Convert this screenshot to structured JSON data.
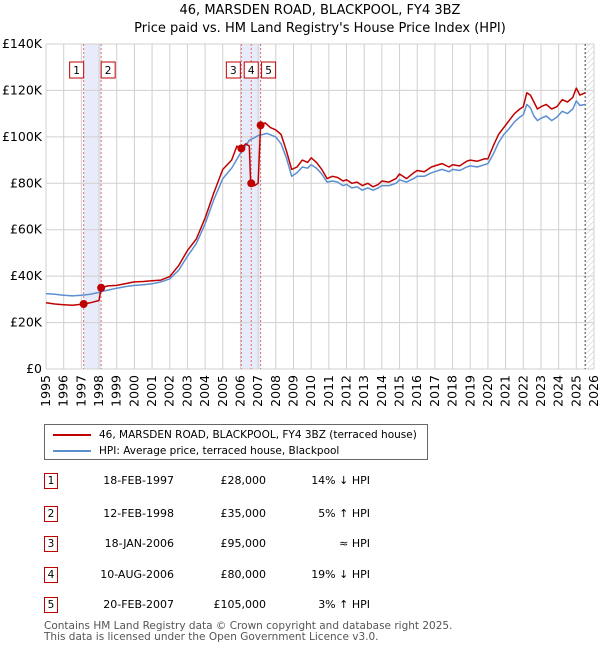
{
  "chart_data": {
    "type": "line",
    "title": "46, MARSDEN ROAD, BLACKPOOL, FY4 3BZ",
    "subtitle": "Price paid vs. HM Land Registry's House Price Index (HPI)",
    "xlim": [
      1995,
      2026
    ],
    "ylim": [
      0,
      140000
    ],
    "x_ticks": [
      "1995",
      "1996",
      "1997",
      "1998",
      "1999",
      "2000",
      "2001",
      "2002",
      "2003",
      "2004",
      "2005",
      "2006",
      "2007",
      "2008",
      "2009",
      "2010",
      "2011",
      "2012",
      "2013",
      "2014",
      "2015",
      "2016",
      "2017",
      "2018",
      "2019",
      "2020",
      "2021",
      "2022",
      "2023",
      "2024",
      "2025",
      "2026"
    ],
    "y_ticks": [
      {
        "value": 0,
        "label": "£0"
      },
      {
        "value": 20000,
        "label": "£20K"
      },
      {
        "value": 40000,
        "label": "£40K"
      },
      {
        "value": 60000,
        "label": "£60K"
      },
      {
        "value": 80000,
        "label": "£80K"
      },
      {
        "value": 100000,
        "label": "£100K"
      },
      {
        "value": 120000,
        "label": "£120K"
      },
      {
        "value": 140000,
        "label": "£140K"
      }
    ],
    "grid": true,
    "shaded_spans": [
      [
        1997.13,
        1998.12
      ],
      [
        2006.05,
        2007.14
      ]
    ],
    "forecast_start": 2025.5,
    "series": [
      {
        "name": "46, MARSDEN ROAD, BLACKPOOL, FY4 3BZ (terraced house)",
        "color": "#c00000",
        "points": [
          [
            1995.0,
            28500
          ],
          [
            1995.5,
            28000
          ],
          [
            1996.0,
            27700
          ],
          [
            1996.5,
            27500
          ],
          [
            1997.13,
            28000
          ],
          [
            1997.5,
            28500
          ],
          [
            1998.0,
            29500
          ],
          [
            1998.12,
            35000
          ],
          [
            1998.5,
            35800
          ],
          [
            1999.0,
            36000
          ],
          [
            1999.5,
            36800
          ],
          [
            2000.0,
            37500
          ],
          [
            2000.5,
            37700
          ],
          [
            2001.0,
            38000
          ],
          [
            2001.5,
            38300
          ],
          [
            2002.0,
            39800
          ],
          [
            2002.5,
            44500
          ],
          [
            2003.0,
            51000
          ],
          [
            2003.5,
            56000
          ],
          [
            2004.0,
            65000
          ],
          [
            2004.5,
            76000
          ],
          [
            2005.0,
            86000
          ],
          [
            2005.5,
            90000
          ],
          [
            2005.8,
            96000
          ],
          [
            2006.05,
            95000
          ],
          [
            2006.3,
            97000
          ],
          [
            2006.5,
            96000
          ],
          [
            2006.58,
            80000
          ],
          [
            2006.8,
            79000
          ],
          [
            2007.0,
            80000
          ],
          [
            2007.14,
            105000
          ],
          [
            2007.4,
            106000
          ],
          [
            2007.7,
            104000
          ],
          [
            2008.0,
            103000
          ],
          [
            2008.3,
            101000
          ],
          [
            2008.6,
            94000
          ],
          [
            2008.9,
            86000
          ],
          [
            2009.2,
            87000
          ],
          [
            2009.5,
            90000
          ],
          [
            2009.8,
            89000
          ],
          [
            2010.0,
            91000
          ],
          [
            2010.3,
            89000
          ],
          [
            2010.6,
            86000
          ],
          [
            2010.9,
            82000
          ],
          [
            2011.2,
            83000
          ],
          [
            2011.5,
            82500
          ],
          [
            2011.8,
            81000
          ],
          [
            2012.0,
            81500
          ],
          [
            2012.3,
            80000
          ],
          [
            2012.6,
            80500
          ],
          [
            2012.9,
            79000
          ],
          [
            2013.2,
            80000
          ],
          [
            2013.5,
            78500
          ],
          [
            2013.8,
            79500
          ],
          [
            2014.0,
            81000
          ],
          [
            2014.4,
            80500
          ],
          [
            2014.8,
            82000
          ],
          [
            2015.0,
            84000
          ],
          [
            2015.4,
            82000
          ],
          [
            2015.8,
            84500
          ],
          [
            2016.0,
            85500
          ],
          [
            2016.4,
            85000
          ],
          [
            2016.8,
            87000
          ],
          [
            2017.0,
            87500
          ],
          [
            2017.4,
            88500
          ],
          [
            2017.8,
            87000
          ],
          [
            2018.0,
            88000
          ],
          [
            2018.4,
            87500
          ],
          [
            2018.8,
            89500
          ],
          [
            2019.0,
            90000
          ],
          [
            2019.4,
            89500
          ],
          [
            2019.8,
            90500
          ],
          [
            2020.0,
            90500
          ],
          [
            2020.3,
            96000
          ],
          [
            2020.6,
            101000
          ],
          [
            2020.9,
            104000
          ],
          [
            2021.2,
            107000
          ],
          [
            2021.5,
            110000
          ],
          [
            2021.8,
            112000
          ],
          [
            2022.0,
            113000
          ],
          [
            2022.2,
            119000
          ],
          [
            2022.4,
            118000
          ],
          [
            2022.6,
            115000
          ],
          [
            2022.8,
            112000
          ],
          [
            2023.0,
            113000
          ],
          [
            2023.3,
            114000
          ],
          [
            2023.6,
            112000
          ],
          [
            2023.9,
            113000
          ],
          [
            2024.2,
            116000
          ],
          [
            2024.5,
            115000
          ],
          [
            2024.8,
            117000
          ],
          [
            2025.0,
            121000
          ],
          [
            2025.2,
            118000
          ],
          [
            2025.5,
            119000
          ]
        ]
      },
      {
        "name": "HPI: Average price, terraced house, Blackpool",
        "color": "#5b8fd0",
        "points": [
          [
            1995.0,
            32500
          ],
          [
            1995.5,
            32200
          ],
          [
            1996.0,
            31800
          ],
          [
            1996.5,
            31500
          ],
          [
            1997.0,
            31800
          ],
          [
            1997.5,
            32200
          ],
          [
            1998.0,
            33000
          ],
          [
            1998.12,
            33300
          ],
          [
            1998.5,
            34000
          ],
          [
            1999.0,
            34800
          ],
          [
            1999.5,
            35500
          ],
          [
            2000.0,
            36000
          ],
          [
            2000.5,
            36300
          ],
          [
            2001.0,
            36700
          ],
          [
            2001.5,
            37500
          ],
          [
            2002.0,
            38800
          ],
          [
            2002.5,
            42500
          ],
          [
            2003.0,
            48500
          ],
          [
            2003.5,
            54000
          ],
          [
            2004.0,
            62500
          ],
          [
            2004.5,
            73000
          ],
          [
            2005.0,
            82000
          ],
          [
            2005.5,
            86500
          ],
          [
            2006.0,
            93000
          ],
          [
            2006.5,
            98500
          ],
          [
            2007.0,
            100500
          ],
          [
            2007.5,
            101500
          ],
          [
            2008.0,
            100000
          ],
          [
            2008.3,
            97000
          ],
          [
            2008.6,
            91000
          ],
          [
            2008.9,
            83000
          ],
          [
            2009.2,
            84500
          ],
          [
            2009.5,
            87000
          ],
          [
            2009.8,
            86500
          ],
          [
            2010.0,
            88000
          ],
          [
            2010.3,
            86500
          ],
          [
            2010.6,
            84000
          ],
          [
            2010.9,
            80500
          ],
          [
            2011.2,
            81000
          ],
          [
            2011.5,
            80500
          ],
          [
            2011.8,
            79000
          ],
          [
            2012.0,
            79500
          ],
          [
            2012.3,
            78000
          ],
          [
            2012.6,
            78500
          ],
          [
            2012.9,
            77000
          ],
          [
            2013.2,
            78000
          ],
          [
            2013.5,
            77000
          ],
          [
            2013.8,
            78000
          ],
          [
            2014.0,
            79000
          ],
          [
            2014.4,
            79000
          ],
          [
            2014.8,
            80000
          ],
          [
            2015.0,
            81500
          ],
          [
            2015.4,
            80500
          ],
          [
            2015.8,
            82000
          ],
          [
            2016.0,
            83000
          ],
          [
            2016.4,
            83000
          ],
          [
            2016.8,
            84500
          ],
          [
            2017.0,
            85000
          ],
          [
            2017.4,
            86000
          ],
          [
            2017.8,
            85000
          ],
          [
            2018.0,
            86000
          ],
          [
            2018.4,
            85500
          ],
          [
            2018.8,
            87000
          ],
          [
            2019.0,
            87500
          ],
          [
            2019.4,
            87000
          ],
          [
            2019.8,
            88000
          ],
          [
            2020.0,
            88500
          ],
          [
            2020.3,
            92500
          ],
          [
            2020.6,
            97500
          ],
          [
            2020.9,
            101000
          ],
          [
            2021.2,
            103500
          ],
          [
            2021.5,
            106500
          ],
          [
            2021.8,
            108500
          ],
          [
            2022.0,
            109500
          ],
          [
            2022.2,
            114000
          ],
          [
            2022.4,
            112500
          ],
          [
            2022.6,
            109000
          ],
          [
            2022.8,
            107000
          ],
          [
            2023.0,
            108000
          ],
          [
            2023.3,
            109000
          ],
          [
            2023.6,
            107000
          ],
          [
            2023.9,
            108500
          ],
          [
            2024.2,
            111000
          ],
          [
            2024.5,
            110000
          ],
          [
            2024.8,
            112000
          ],
          [
            2025.0,
            115500
          ],
          [
            2025.2,
            113500
          ],
          [
            2025.5,
            114000
          ]
        ]
      }
    ],
    "transactions": [
      {
        "num": "1",
        "date": "18-FEB-1997",
        "x": 1997.13,
        "price": 28000,
        "price_label": "£28,000",
        "hpi": "14% ↓ HPI"
      },
      {
        "num": "2",
        "date": "12-FEB-1998",
        "x": 1998.12,
        "price": 35000,
        "price_label": "£35,000",
        "hpi": "5% ↑ HPI"
      },
      {
        "num": "3",
        "date": "18-JAN-2006",
        "x": 2006.05,
        "price": 95000,
        "price_label": "£95,000",
        "hpi": "≈ HPI"
      },
      {
        "num": "4",
        "date": "10-AUG-2006",
        "x": 2006.61,
        "price": 80000,
        "price_label": "£80,000",
        "hpi": "19% ↓ HPI"
      },
      {
        "num": "5",
        "date": "20-FEB-2007",
        "x": 2007.14,
        "price": 105000,
        "price_label": "£105,000",
        "hpi": "3% ↑ HPI"
      }
    ]
  },
  "legend": {
    "property_label": "46, MARSDEN ROAD, BLACKPOOL, FY4 3BZ (terraced house)",
    "hpi_label": "HPI: Average price, terraced house, Blackpool"
  },
  "footer": {
    "line1": "Contains HM Land Registry data © Crown copyright and database right 2025.",
    "line2": "This data is licensed under the Open Government Licence v3.0."
  }
}
